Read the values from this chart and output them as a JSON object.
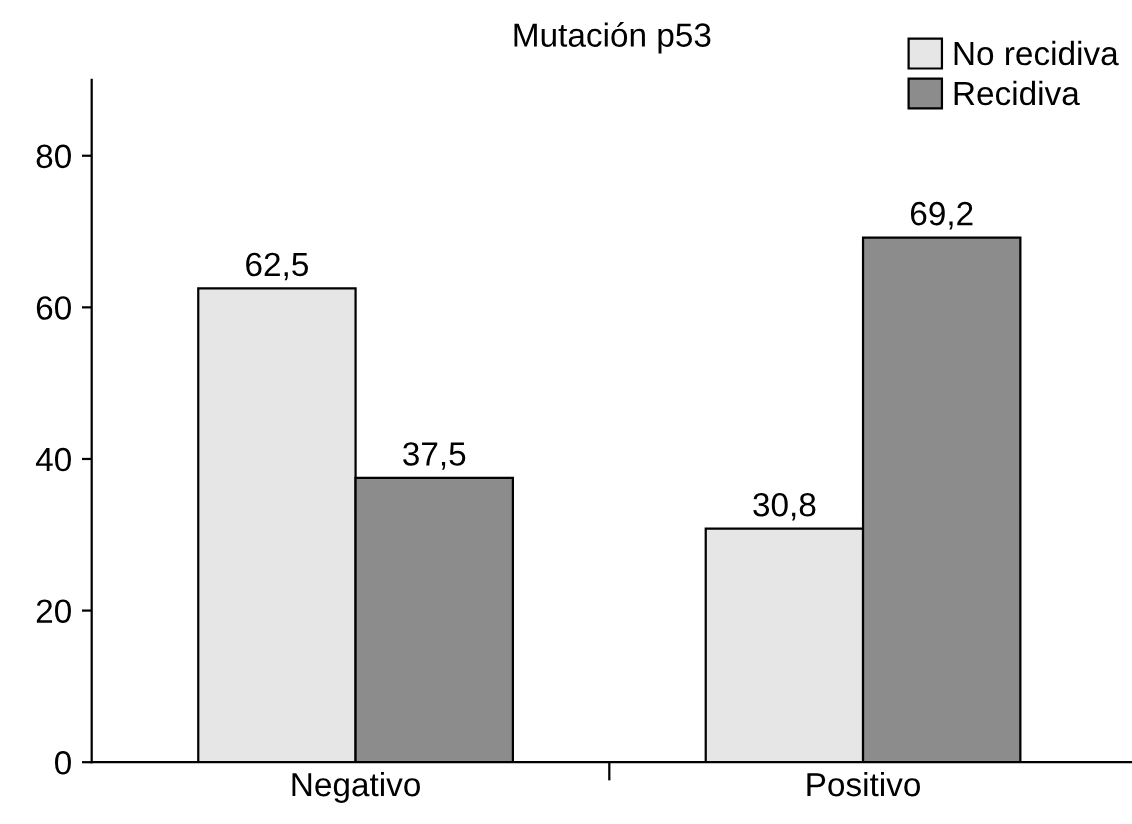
{
  "chart_data": {
    "type": "bar",
    "title": "Mutación p53",
    "categories": [
      "Negativo",
      "Positivo"
    ],
    "series": [
      {
        "name": "No recidiva",
        "color": "#e6e6e6",
        "values": [
          62.5,
          30.8
        ],
        "value_labels": [
          "62,5",
          "30,8"
        ]
      },
      {
        "name": "Recidiva",
        "color": "#8c8c8c",
        "values": [
          37.5,
          69.2
        ],
        "value_labels": [
          "37,5",
          "69,2"
        ]
      }
    ],
    "ylim": [
      0,
      90
    ],
    "yticks": [
      0,
      20,
      40,
      60,
      80
    ],
    "grid": false,
    "legend": "top right"
  }
}
